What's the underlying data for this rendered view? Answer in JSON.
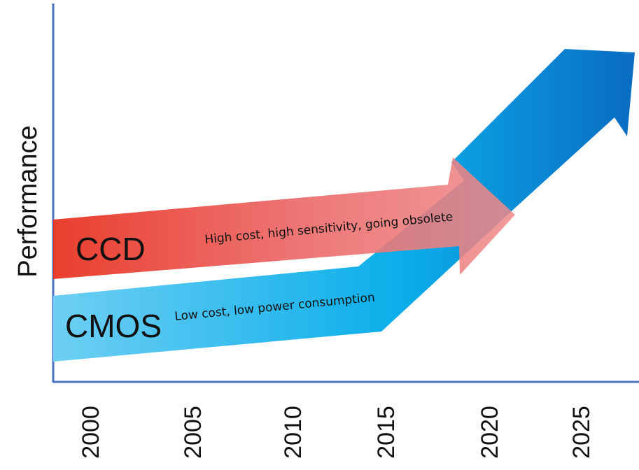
{
  "diagram": {
    "y_axis_label": "Performance",
    "x_ticks": [
      "2000",
      "2005",
      "2010",
      "2015",
      "2020",
      "2025"
    ],
    "arrows": {
      "ccd": {
        "name": "CCD",
        "note": "High cost, high sensitivity, going obsolete"
      },
      "cmos": {
        "name": "CMOS",
        "note": "Low cost, low power consumption"
      }
    },
    "colors": {
      "axis": "#4a73c6",
      "ccd_start": "#e8301e",
      "ccd_end": "#ef8a8a",
      "cmos_light": "#6ecff3",
      "cmos_mid": "#0aaeea",
      "cmos_dark": "#0a6cc2"
    }
  }
}
